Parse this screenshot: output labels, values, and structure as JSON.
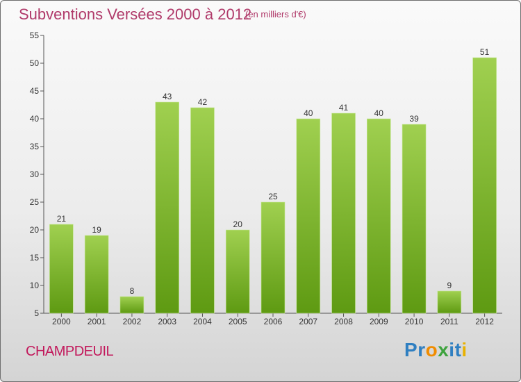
{
  "chart_data": {
    "type": "bar",
    "title": "Subventions Versées 2000 à 2012",
    "subtitle": "(en milliers d'€)",
    "categories": [
      "2000",
      "2001",
      "2002",
      "2003",
      "2004",
      "2005",
      "2006",
      "2007",
      "2008",
      "2009",
      "2010",
      "2011",
      "2012"
    ],
    "values": [
      21,
      19,
      8,
      43,
      42,
      20,
      25,
      40,
      41,
      40,
      39,
      9,
      51
    ],
    "yticks": [
      5,
      10,
      15,
      20,
      25,
      30,
      35,
      40,
      45,
      50,
      55
    ],
    "ylim": [
      5,
      55
    ],
    "grid": false,
    "bar_color_top": "#a0d050",
    "bar_color_bottom": "#5e9a12"
  },
  "footer": {
    "commune": "CHAMPDEUIL",
    "logo_letters": [
      {
        "char": "P",
        "color": "#2f7fc1"
      },
      {
        "char": "r",
        "color": "#2f7fc1"
      },
      {
        "char": "o",
        "color": "#f08c00"
      },
      {
        "char": "x",
        "color": "#3ea33e"
      },
      {
        "char": "i",
        "color": "#2f7fc1"
      },
      {
        "char": "t",
        "color": "#2f7fc1"
      },
      {
        "char": "i",
        "color": "#e8b100"
      }
    ]
  }
}
